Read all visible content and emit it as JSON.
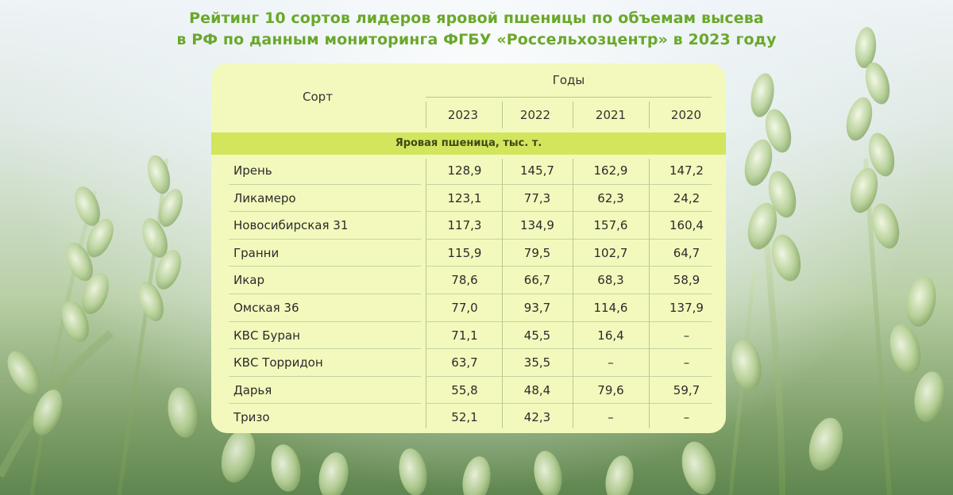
{
  "title": {
    "line1": "Рейтинг 10 сортов лидеров яровой пшеницы по объемам высева",
    "line2": "в РФ по данным мониторинга ФГБУ «Россельхозцентр» в 2023 году"
  },
  "colors": {
    "title": "#6aa82a",
    "card": "#f3f9bc",
    "band": "#d3e55d"
  },
  "table": {
    "header_sort": "Сорт",
    "header_years": "Годы",
    "years": [
      "2023",
      "2022",
      "2021",
      "2020"
    ],
    "section": "Яровая пшеница, тыс. т.",
    "rows": [
      {
        "name": "Ирень",
        "values": [
          "128,9",
          "145,7",
          "162,9",
          "147,2"
        ]
      },
      {
        "name": "Ликамеро",
        "values": [
          "123,1",
          "77,3",
          "62,3",
          "24,2"
        ]
      },
      {
        "name": "Новосибирская 31",
        "values": [
          "117,3",
          "134,9",
          "157,6",
          "160,4"
        ]
      },
      {
        "name": "Гранни",
        "values": [
          "115,9",
          "79,5",
          "102,7",
          "64,7"
        ]
      },
      {
        "name": "Икар",
        "values": [
          "78,6",
          "66,7",
          "68,3",
          "58,9"
        ]
      },
      {
        "name": "Омская 36",
        "values": [
          "77,0",
          "93,7",
          "114,6",
          "137,9"
        ]
      },
      {
        "name": "КВС Буран",
        "values": [
          "71,1",
          "45,5",
          "16,4",
          "–"
        ]
      },
      {
        "name": "КВС Торридон",
        "values": [
          "63,7",
          "35,5",
          "–",
          "–"
        ]
      },
      {
        "name": "Дарья",
        "values": [
          "55,8",
          "48,4",
          "79,6",
          "59,7"
        ]
      },
      {
        "name": "Тризо",
        "values": [
          "52,1",
          "42,3",
          "–",
          "–"
        ]
      }
    ]
  }
}
